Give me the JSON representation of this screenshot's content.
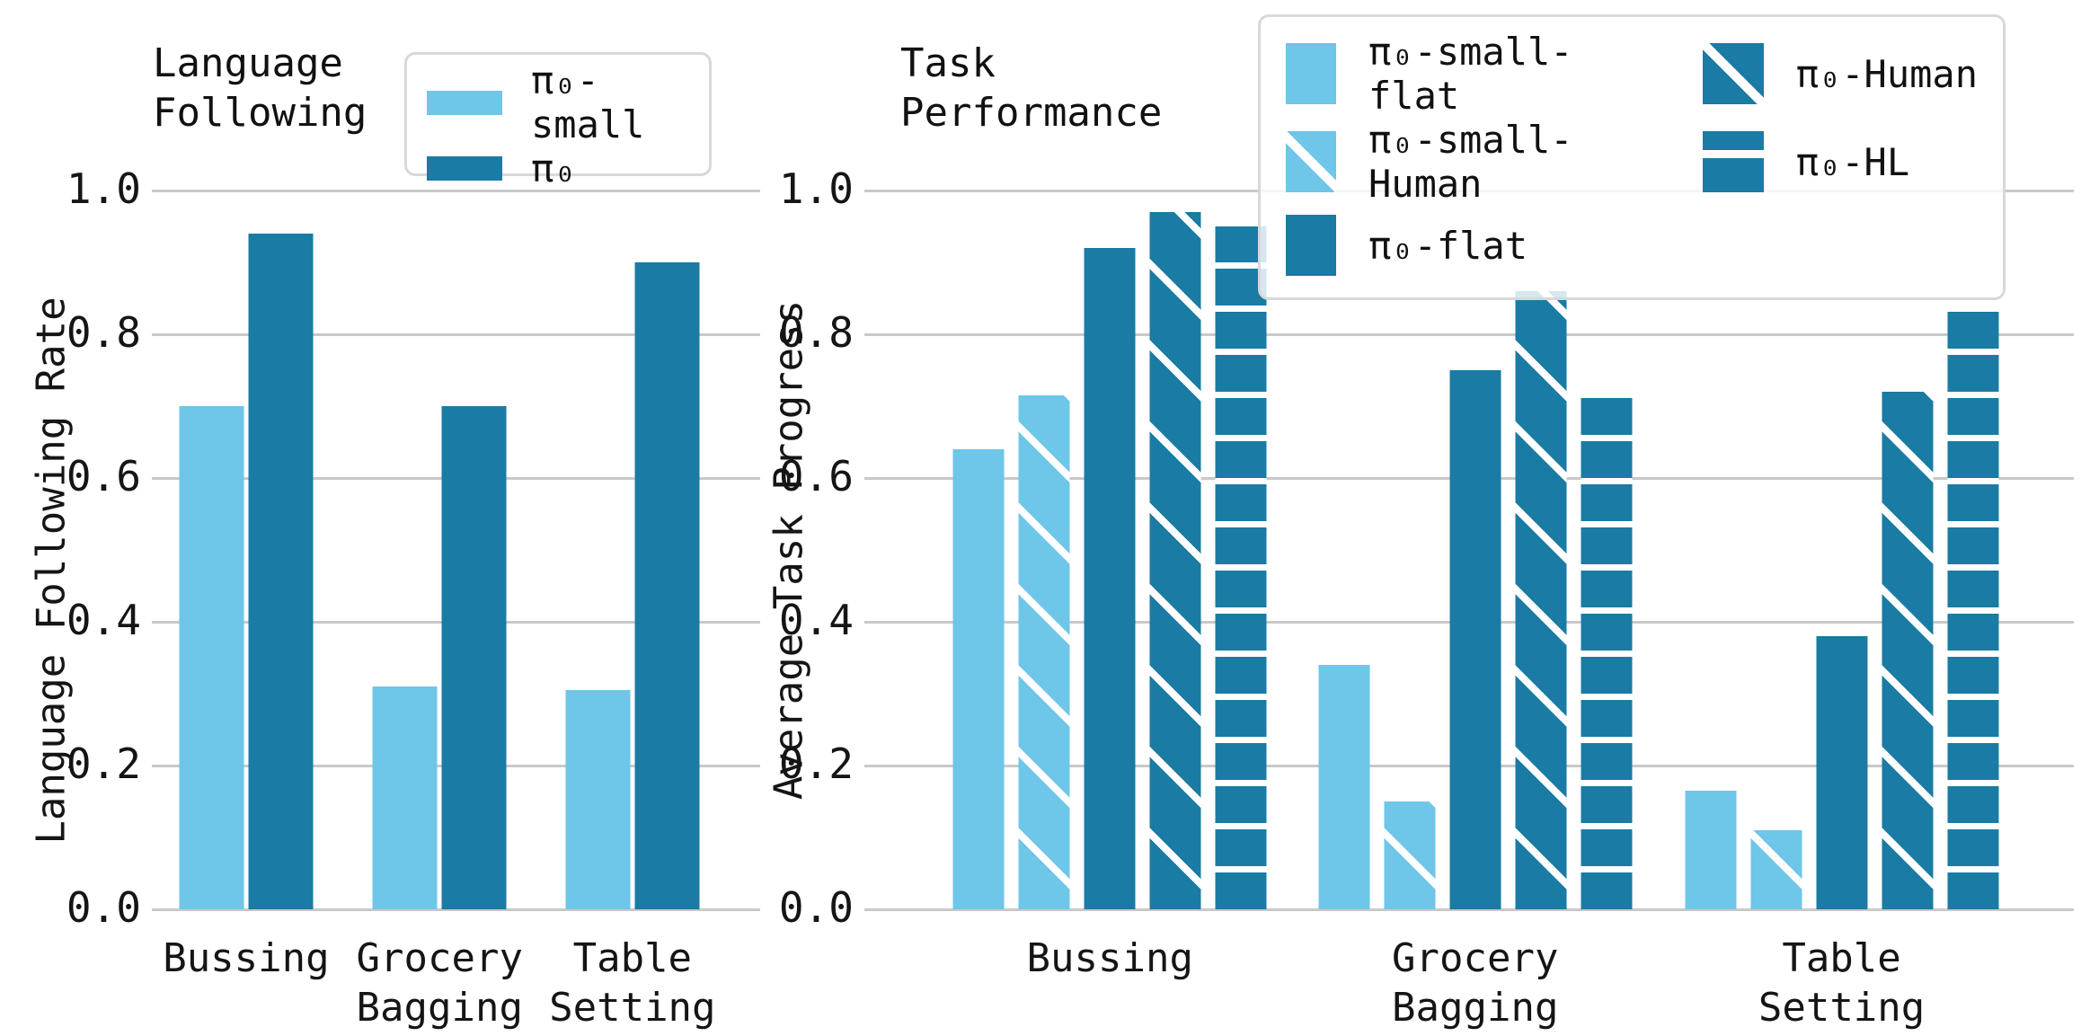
{
  "figure": {
    "background": "#ffffff",
    "colors": {
      "light_blue": "#6ec6e8",
      "dark_teal": "#1a7ba4",
      "gridline": "#c9c9c9",
      "legend_border": "#d8d8d8",
      "text": "#111111"
    }
  },
  "chart_data": [
    {
      "type": "bar",
      "title": "Language\nFollowing",
      "ylabel": "Language Following Rate",
      "categories": [
        "Bussing",
        "Grocery\nBagging",
        "Table\nSetting"
      ],
      "series": [
        {
          "name": "π₀-small",
          "style": "light-solid",
          "hatch": "none",
          "values": [
            0.7,
            0.31,
            0.305
          ]
        },
        {
          "name": "π₀",
          "style": "dark-solid",
          "hatch": "none",
          "values": [
            0.94,
            0.7,
            0.9
          ]
        }
      ],
      "ylim": [
        0.0,
        1.0
      ],
      "yticks": [
        0.0,
        0.2,
        0.4,
        0.6,
        0.8,
        1.0
      ],
      "grid": "horizontal",
      "legend_position": "upper center"
    },
    {
      "type": "bar",
      "title": "Task\nPerformance",
      "ylabel": "Average Task Progress",
      "categories": [
        "Bussing",
        "Grocery\nBagging",
        "Table\nSetting"
      ],
      "series": [
        {
          "name": "π₀-small-flat",
          "style": "light-solid",
          "hatch": "none",
          "values": [
            0.64,
            0.34,
            0.165
          ]
        },
        {
          "name": "π₀-small-Human",
          "style": "light-diag",
          "hatch": "diagonal",
          "values": [
            0.715,
            0.15,
            0.11
          ]
        },
        {
          "name": "π₀-flat",
          "style": "dark-solid",
          "hatch": "none",
          "values": [
            0.92,
            0.75,
            0.38
          ]
        },
        {
          "name": "π₀-Human",
          "style": "dark-diag",
          "hatch": "diagonal",
          "values": [
            0.97,
            0.86,
            0.72
          ]
        },
        {
          "name": "π₀-HL",
          "style": "dark-hstripe",
          "hatch": "horizontal",
          "values": [
            0.95,
            0.72,
            0.84
          ]
        }
      ],
      "ylim": [
        0.0,
        1.0
      ],
      "yticks": [
        0.0,
        0.2,
        0.4,
        0.6,
        0.8,
        1.0
      ],
      "grid": "horizontal",
      "legend_position": "upper right"
    }
  ]
}
